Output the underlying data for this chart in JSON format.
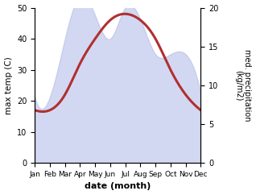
{
  "months": [
    "Jan",
    "Feb",
    "Mar",
    "Apr",
    "May",
    "Jun",
    "Jul",
    "Aug",
    "Sep",
    "Oct",
    "Nov",
    "Dec"
  ],
  "month_indices": [
    1,
    2,
    3,
    4,
    5,
    6,
    7,
    8,
    9,
    10,
    11,
    12
  ],
  "temperature": [
    17,
    17,
    22,
    32,
    40,
    46,
    48,
    46,
    40,
    30,
    22,
    17
  ],
  "precipitation": [
    8.5,
    8.5,
    16,
    21.5,
    19,
    16,
    20,
    18.5,
    14,
    14,
    14,
    9
  ],
  "temp_label": "max temp (C)",
  "precip_label": "med. precipitation\n(kg/m2)",
  "xlabel": "date (month)",
  "temp_ylim": [
    0,
    50
  ],
  "precip_ylim": [
    0,
    20
  ],
  "temp_yticks": [
    0,
    10,
    20,
    30,
    40,
    50
  ],
  "precip_yticks": [
    0,
    5,
    10,
    15,
    20
  ],
  "fill_color": "#b0b8e8",
  "fill_alpha": 0.55,
  "line_color": "#b03030",
  "line_width": 2.2,
  "bg_color": "#ffffff"
}
